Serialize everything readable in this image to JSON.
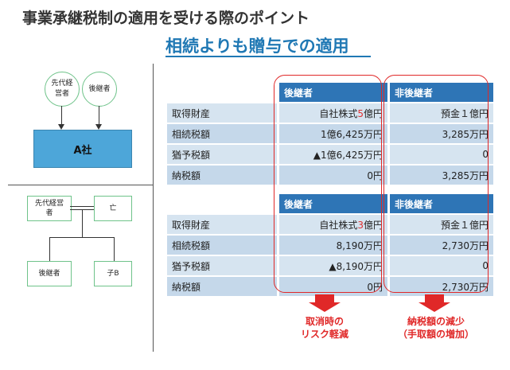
{
  "title": "事業承継税制の適用を受ける際のポイント",
  "subtitle": "相続よりも贈与での適用",
  "diagram_top": {
    "predecessor": "先代経営者",
    "successor": "後継者",
    "company": "A社"
  },
  "diagram_bottom": {
    "predecessor": "先代経営者",
    "deceased": "亡",
    "successor": "後継者",
    "child": "子B"
  },
  "table1": {
    "header_successor": "後継者",
    "header_non_successor": "非後継者",
    "rows": [
      {
        "label": "取得財産",
        "succ_pre": "自社株式",
        "succ_red": "5",
        "succ_post": "億円",
        "non": "預金１億円"
      },
      {
        "label": "相続税額",
        "succ": "1億6,425万円",
        "non": "3,285万円"
      },
      {
        "label": "猶予税額",
        "succ": "▲1億6,425万円",
        "non": "0"
      },
      {
        "label": "納税額",
        "succ": "0円",
        "non": "3,285万円"
      }
    ]
  },
  "table2": {
    "header_successor": "後継者",
    "header_non_successor": "非後継者",
    "rows": [
      {
        "label": "取得財産",
        "succ_pre": "自社株式",
        "succ_red": "3",
        "succ_post": "億円",
        "non": "預金１億円"
      },
      {
        "label": "相続税額",
        "succ": "8,190万円",
        "non": "2,730万円"
      },
      {
        "label": "猶予税額",
        "succ": "▲8,190万円",
        "non": "0"
      },
      {
        "label": "納税額",
        "succ": "0円",
        "non": "2,730万円"
      }
    ]
  },
  "notes": {
    "left_line1": "取消時の",
    "left_line2": "リスク軽減",
    "right_line1": "納税額の減少",
    "right_line2": "（手取額の増加）"
  },
  "colors": {
    "accent": "#1f78b4",
    "header": "#2e75b6",
    "highlight": "#e02828"
  }
}
